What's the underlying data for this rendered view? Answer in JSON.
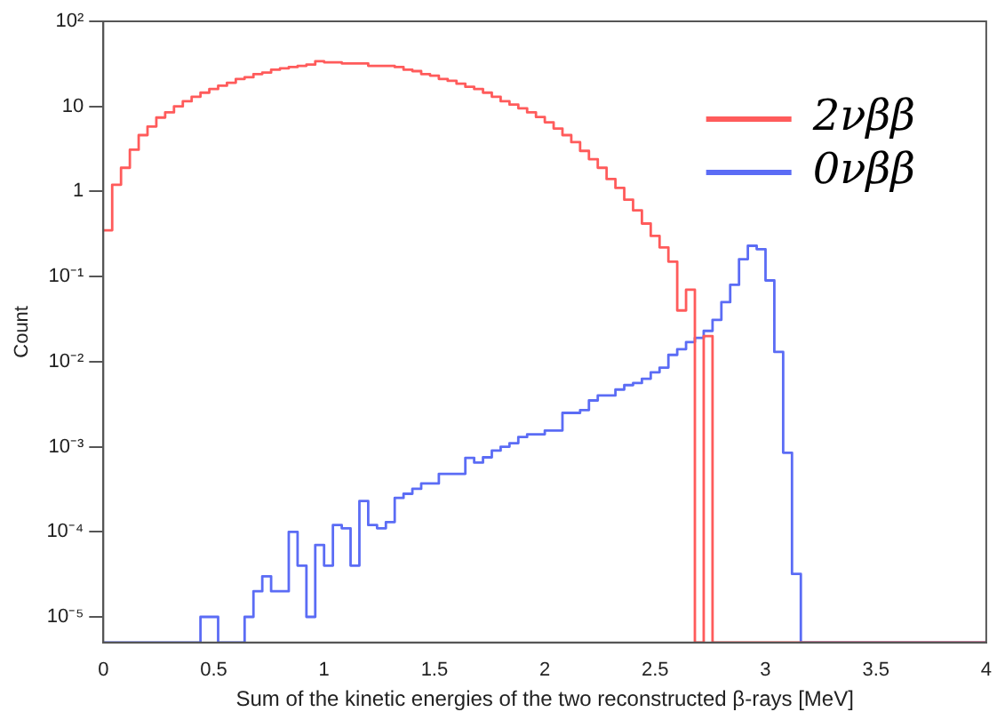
{
  "chart_data": {
    "type": "histogram",
    "xlabel": "Sum of the kinetic energies of the two reconstructed β-rays [MeV]",
    "ylabel": "Count",
    "bins": [
      0,
      0.04,
      0.08,
      0.12,
      0.16,
      0.2,
      0.24,
      0.28,
      0.32,
      0.36,
      0.4,
      0.44,
      0.48,
      0.52,
      0.56,
      0.6,
      0.64,
      0.68,
      0.72,
      0.76,
      0.8,
      0.84,
      0.88,
      0.92,
      0.96,
      1,
      1.04,
      1.08,
      1.12,
      1.16,
      1.2,
      1.24,
      1.28,
      1.32,
      1.36,
      1.4,
      1.44,
      1.48,
      1.52,
      1.56,
      1.6,
      1.64,
      1.68,
      1.72,
      1.76,
      1.8,
      1.84,
      1.88,
      1.92,
      1.96,
      2,
      2.04,
      2.08,
      2.12,
      2.16,
      2.2,
      2.24,
      2.28,
      2.32,
      2.36,
      2.4,
      2.44,
      2.48,
      2.52,
      2.56,
      2.6,
      2.64,
      2.68,
      2.72,
      2.76,
      2.8,
      2.84,
      2.88,
      2.92,
      2.96,
      3,
      3.04,
      3.08,
      3.12,
      3.16,
      3.2,
      3.24,
      3.28,
      3.32,
      3.36,
      3.4,
      3.44,
      3.48,
      3.52,
      3.56,
      3.6,
      3.64,
      3.68,
      3.72,
      3.76,
      3.8,
      3.84,
      3.88,
      3.92,
      3.96,
      4
    ],
    "series": [
      {
        "name": "2νββ",
        "color": "#ff5b5b",
        "values": [
          0.35,
          1.2,
          1.9,
          3.1,
          4.6,
          5.8,
          7.4,
          8.5,
          10,
          11.5,
          13,
          14.5,
          16,
          17.5,
          19,
          21,
          22,
          24,
          25,
          27,
          28,
          29,
          30,
          31,
          34,
          33,
          33,
          32,
          32,
          32,
          30,
          30,
          30,
          29,
          27,
          26,
          24,
          23,
          21,
          20,
          18.5,
          17,
          16,
          14.5,
          13,
          11.5,
          10.5,
          9.5,
          8.5,
          7.5,
          6.5,
          5.5,
          4.6,
          3.8,
          3.0,
          2.4,
          1.9,
          1.4,
          1.1,
          0.8,
          0.6,
          0.42,
          0.3,
          0.22,
          0.15,
          0.04,
          0.07,
          null,
          0.02,
          null,
          null,
          null,
          null,
          null,
          null,
          null,
          null,
          null,
          null,
          null,
          null,
          null,
          null,
          null,
          null,
          null,
          null,
          null,
          null,
          null,
          null,
          null,
          null,
          null,
          null,
          null,
          null,
          null,
          null,
          null
        ]
      },
      {
        "name": "0νββ",
        "color": "#5b6cf5",
        "values": [
          null,
          null,
          null,
          null,
          null,
          null,
          null,
          null,
          null,
          null,
          null,
          1e-05,
          1e-05,
          null,
          null,
          null,
          1e-05,
          2e-05,
          3e-05,
          2e-05,
          2e-05,
          0.0001,
          4e-05,
          1e-05,
          7e-05,
          4e-05,
          0.00012,
          0.00011,
          4e-05,
          0.00023,
          0.00012,
          0.00011,
          0.00013,
          0.00025,
          0.00028,
          0.00032,
          0.00037,
          0.00037,
          0.00048,
          0.00048,
          0.00048,
          0.00074,
          0.00065,
          0.00075,
          0.0009,
          0.001,
          0.0011,
          0.0013,
          0.0014,
          0.0014,
          0.00155,
          0.00155,
          0.0025,
          0.0025,
          0.0027,
          0.0035,
          0.004,
          0.004,
          0.0047,
          0.0053,
          0.0056,
          0.0063,
          0.0075,
          0.0085,
          0.012,
          0.014,
          0.017,
          0.019,
          0.023,
          0.031,
          0.05,
          0.08,
          0.16,
          0.23,
          0.21,
          0.09,
          0.013,
          0.00085,
          3.2e-05,
          null,
          null,
          null,
          null,
          null,
          null,
          null,
          null,
          null,
          null,
          null,
          null,
          null,
          null,
          null,
          null,
          null,
          null,
          null,
          null,
          null
        ]
      }
    ],
    "log": "y",
    "xlim": [
      0,
      4
    ],
    "xticks": [
      0,
      0.5,
      1,
      1.5,
      2,
      2.5,
      3,
      3.5,
      4
    ],
    "ylim": [
      5e-06,
      100
    ],
    "yticks": [
      {
        "value": 1e-05,
        "label": "10⁻⁵"
      },
      {
        "value": 0.0001,
        "label": "10⁻⁴"
      },
      {
        "value": 0.001,
        "label": "10⁻³"
      },
      {
        "value": 0.01,
        "label": "10⁻²"
      },
      {
        "value": 0.1,
        "label": "10⁻¹"
      },
      1,
      10,
      {
        "value": 100,
        "label": "10²"
      }
    ],
    "grid": false,
    "legend": "top right"
  }
}
